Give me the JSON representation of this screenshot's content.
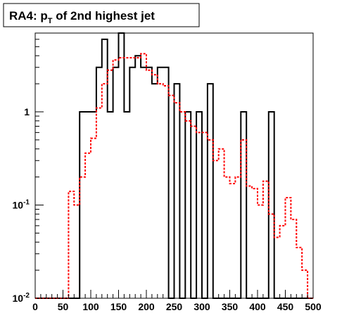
{
  "chart_data": {
    "type": "step-histogram",
    "title": "RA4: p",
    "title_sub": "T",
    "title_rest": " of 2nd highest jet",
    "xlabel": "",
    "ylabel": "",
    "xlim": [
      0,
      500
    ],
    "ylim": [
      0.01,
      7
    ],
    "y_scale": "log",
    "grid": false,
    "bin_width": 10,
    "bins_start": [
      0,
      10,
      20,
      30,
      40,
      50,
      60,
      70,
      80,
      90,
      100,
      110,
      120,
      130,
      140,
      150,
      160,
      170,
      180,
      190,
      200,
      210,
      220,
      230,
      240,
      250,
      260,
      270,
      280,
      290,
      300,
      310,
      320,
      330,
      340,
      350,
      360,
      370,
      380,
      390,
      400,
      410,
      420,
      430,
      440,
      450,
      460,
      470,
      480,
      490
    ],
    "x_ticks": [
      "0",
      "50",
      "100",
      "150",
      "200",
      "250",
      "300",
      "350",
      "400",
      "450",
      "500"
    ],
    "y_ticks": [
      {
        "value": 0.01,
        "base": "10",
        "exp": "-2"
      },
      {
        "value": 0.1,
        "base": "10",
        "exp": "-1"
      },
      {
        "value": 1,
        "base": "1",
        "exp": ""
      }
    ],
    "series": [
      {
        "color": "#000000",
        "style": "solid",
        "values": [
          0.01,
          0.01,
          0.01,
          0.01,
          0.01,
          0.01,
          0.01,
          0.01,
          1.0,
          1.0,
          1.0,
          3.0,
          6.0,
          1.0,
          3.0,
          7.0,
          1.0,
          3.0,
          4.0,
          3.0,
          3.0,
          2.0,
          3.0,
          3.0,
          0.01,
          2.0,
          0.01,
          1.0,
          0.01,
          1.0,
          0.01,
          2.0,
          0.01,
          0.01,
          0.01,
          0.01,
          0.01,
          1.0,
          0.01,
          0.01,
          0.01,
          0.01,
          1.0,
          0.01,
          0.01,
          0.01,
          0.01,
          0.01,
          0.01,
          0.01
        ]
      },
      {
        "color": "#ff0000",
        "style": "dashed",
        "values": [
          0.01,
          0.01,
          0.01,
          0.01,
          0.01,
          0.01,
          0.14,
          0.1,
          0.2,
          0.36,
          0.52,
          1.1,
          2.0,
          2.8,
          3.6,
          3.8,
          3.8,
          3.8,
          3.8,
          4.2,
          2.8,
          2.5,
          2.0,
          1.9,
          1.5,
          1.25,
          1.0,
          0.8,
          0.7,
          0.6,
          0.6,
          0.5,
          0.3,
          0.4,
          0.2,
          0.17,
          0.2,
          0.5,
          0.16,
          0.15,
          0.1,
          0.18,
          0.08,
          0.045,
          0.06,
          0.12,
          0.07,
          0.035,
          0.02,
          0.01
        ]
      }
    ]
  }
}
